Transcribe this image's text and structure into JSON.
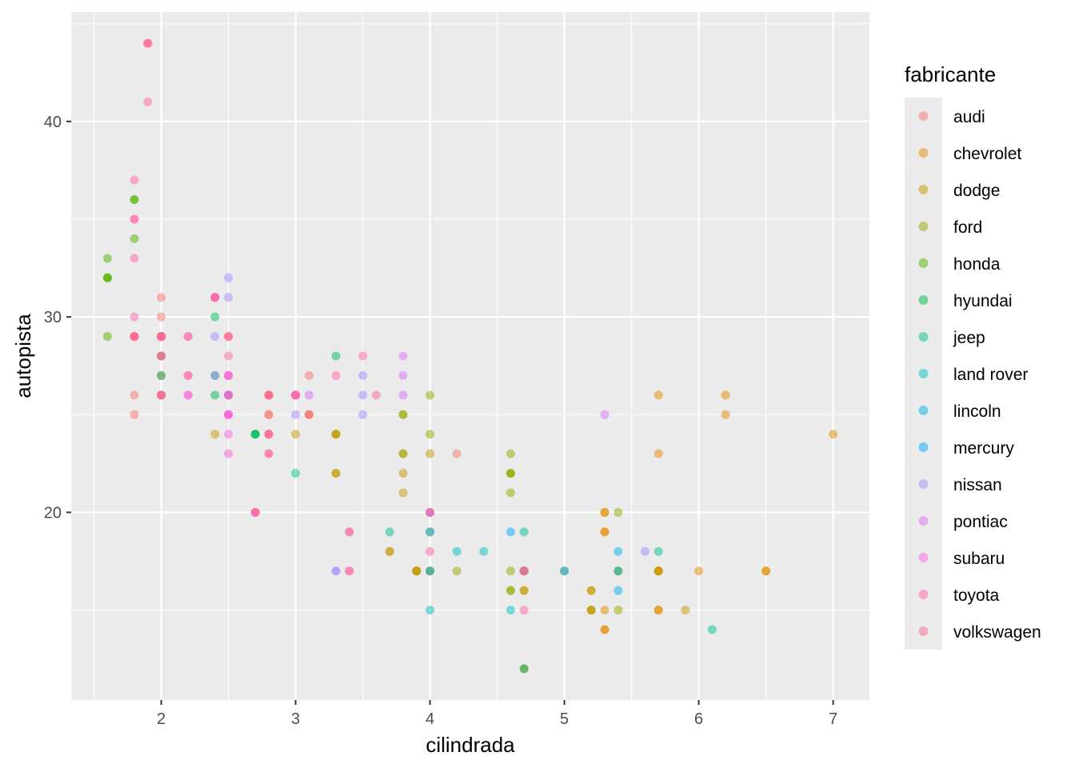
{
  "chart_data": {
    "type": "scatter",
    "xlabel": "cilindrada",
    "ylabel": "autopista",
    "xlim": [
      1.33,
      7.27
    ],
    "ylim": [
      10.4,
      45.6
    ],
    "x_ticks": [
      2,
      3,
      4,
      5,
      6,
      7
    ],
    "y_ticks": [
      20,
      30,
      40
    ],
    "grid": true,
    "legend": {
      "title": "fabricante",
      "placement": "right",
      "entries": [
        "audi",
        "chevrolet",
        "dodge",
        "ford",
        "honda",
        "hyundai",
        "jeep",
        "land rover",
        "lincoln",
        "mercury",
        "nissan",
        "pontiac",
        "subaru",
        "toyota",
        "volkswagen"
      ]
    },
    "series": [
      {
        "name": "audi",
        "color": "#F8766D",
        "points": [
          [
            1.8,
            29
          ],
          [
            1.8,
            29
          ],
          [
            2.0,
            31
          ],
          [
            2.0,
            30
          ],
          [
            2.8,
            26
          ],
          [
            2.8,
            26
          ],
          [
            3.1,
            27
          ],
          [
            1.8,
            26
          ],
          [
            1.8,
            25
          ],
          [
            2.0,
            28
          ],
          [
            2.0,
            27
          ],
          [
            2.8,
            25
          ],
          [
            2.8,
            25
          ],
          [
            3.1,
            25
          ],
          [
            3.1,
            25
          ],
          [
            2.8,
            24
          ],
          [
            3.1,
            25
          ],
          [
            4.2,
            23
          ]
        ]
      },
      {
        "name": "chevrolet",
        "color": "#E38900",
        "points": [
          [
            5.3,
            20
          ],
          [
            5.3,
            15
          ],
          [
            5.3,
            20
          ],
          [
            5.7,
            17
          ],
          [
            6.0,
            17
          ],
          [
            5.7,
            26
          ],
          [
            5.7,
            23
          ],
          [
            6.2,
            26
          ],
          [
            6.2,
            25
          ],
          [
            7.0,
            24
          ],
          [
            5.3,
            19
          ],
          [
            5.3,
            14
          ],
          [
            5.7,
            15
          ],
          [
            6.5,
            17
          ],
          [
            5.7,
            17
          ],
          [
            5.3,
            19
          ],
          [
            5.3,
            14
          ],
          [
            5.7,
            15
          ],
          [
            6.5,
            17
          ]
        ]
      },
      {
        "name": "dodge",
        "color": "#C49A00",
        "points": [
          [
            2.4,
            24
          ],
          [
            3.0,
            24
          ],
          [
            3.3,
            22
          ],
          [
            3.3,
            22
          ],
          [
            3.3,
            24
          ],
          [
            3.3,
            24
          ],
          [
            3.3,
            24
          ],
          [
            3.8,
            22
          ],
          [
            3.8,
            21
          ],
          [
            3.8,
            23
          ],
          [
            4.0,
            23
          ],
          [
            3.7,
            18
          ],
          [
            3.7,
            18
          ],
          [
            3.9,
            17
          ],
          [
            3.9,
            17
          ],
          [
            4.7,
            17
          ],
          [
            4.7,
            16
          ],
          [
            4.7,
            12
          ],
          [
            5.2,
            15
          ],
          [
            5.2,
            16
          ],
          [
            5.7,
            17
          ],
          [
            5.9,
            15
          ],
          [
            4.7,
            17
          ],
          [
            4.7,
            17
          ],
          [
            4.7,
            12
          ],
          [
            5.2,
            16
          ],
          [
            5.2,
            15
          ],
          [
            3.9,
            17
          ],
          [
            3.9,
            17
          ],
          [
            4.7,
            17
          ],
          [
            4.7,
            16
          ],
          [
            5.2,
            15
          ],
          [
            5.7,
            17
          ]
        ]
      },
      {
        "name": "ford",
        "color": "#99A800",
        "points": [
          [
            4.0,
            17
          ],
          [
            4.0,
            19
          ],
          [
            4.6,
            17
          ],
          [
            5.4,
            17
          ],
          [
            3.8,
            25
          ],
          [
            3.8,
            25
          ],
          [
            4.0,
            24
          ],
          [
            4.0,
            26
          ],
          [
            4.0,
            17
          ],
          [
            4.2,
            17
          ],
          [
            4.6,
            16
          ],
          [
            4.6,
            16
          ],
          [
            4.6,
            22
          ],
          [
            4.6,
            23
          ],
          [
            5.4,
            17
          ],
          [
            5.4,
            20
          ],
          [
            5.4,
            15
          ],
          [
            4.6,
            22
          ],
          [
            4.6,
            21
          ],
          [
            4.6,
            22
          ],
          [
            5.0,
            17
          ],
          [
            3.8,
            23
          ]
        ]
      },
      {
        "name": "honda",
        "color": "#53B400",
        "points": [
          [
            1.6,
            33
          ],
          [
            1.6,
            32
          ],
          [
            1.6,
            32
          ],
          [
            1.6,
            29
          ],
          [
            1.6,
            32
          ],
          [
            1.8,
            34
          ],
          [
            1.8,
            36
          ],
          [
            1.8,
            36
          ],
          [
            2.0,
            29
          ]
        ]
      },
      {
        "name": "hyundai",
        "color": "#00BC56",
        "points": [
          [
            2.4,
            26
          ],
          [
            2.4,
            27
          ],
          [
            2.4,
            30
          ],
          [
            2.4,
            31
          ],
          [
            2.5,
            26
          ],
          [
            2.5,
            26
          ],
          [
            3.3,
            28
          ],
          [
            2.0,
            26
          ],
          [
            2.0,
            29
          ],
          [
            2.0,
            28
          ],
          [
            2.0,
            27
          ],
          [
            2.7,
            24
          ],
          [
            2.7,
            24
          ],
          [
            2.7,
            24
          ]
        ]
      },
      {
        "name": "jeep",
        "color": "#00C094",
        "points": [
          [
            3.0,
            22
          ],
          [
            3.7,
            19
          ],
          [
            4.0,
            20
          ],
          [
            4.7,
            17
          ],
          [
            4.7,
            12
          ],
          [
            4.7,
            19
          ],
          [
            5.7,
            18
          ],
          [
            6.1,
            14
          ]
        ]
      },
      {
        "name": "land rover",
        "color": "#00BFC4",
        "points": [
          [
            4.0,
            15
          ],
          [
            4.2,
            18
          ],
          [
            4.4,
            18
          ],
          [
            4.6,
            15
          ]
        ]
      },
      {
        "name": "lincoln",
        "color": "#00B6EB",
        "points": [
          [
            5.4,
            17
          ],
          [
            5.4,
            16
          ],
          [
            5.4,
            18
          ]
        ]
      },
      {
        "name": "mercury",
        "color": "#06A4FF",
        "points": [
          [
            4.0,
            19
          ],
          [
            4.0,
            17
          ],
          [
            4.6,
            19
          ],
          [
            5.0,
            17
          ]
        ]
      },
      {
        "name": "nissan",
        "color": "#A58AFF",
        "points": [
          [
            2.4,
            27
          ],
          [
            2.4,
            29
          ],
          [
            2.5,
            31
          ],
          [
            2.5,
            32
          ],
          [
            3.5,
            27
          ],
          [
            3.5,
            26
          ],
          [
            3.0,
            26
          ],
          [
            3.0,
            25
          ],
          [
            3.5,
            25
          ],
          [
            3.3,
            17
          ],
          [
            3.3,
            17
          ],
          [
            4.0,
            20
          ],
          [
            5.6,
            18
          ]
        ]
      },
      {
        "name": "pontiac",
        "color": "#DF70F8",
        "points": [
          [
            3.1,
            26
          ],
          [
            3.8,
            26
          ],
          [
            3.8,
            27
          ],
          [
            3.8,
            28
          ],
          [
            5.3,
            25
          ]
        ]
      },
      {
        "name": "subaru",
        "color": "#FB61D7",
        "points": [
          [
            2.5,
            25
          ],
          [
            2.5,
            24
          ],
          [
            2.5,
            27
          ],
          [
            2.5,
            25
          ],
          [
            2.5,
            26
          ],
          [
            2.5,
            23
          ],
          [
            2.2,
            26
          ],
          [
            2.2,
            26
          ],
          [
            2.5,
            26
          ],
          [
            2.5,
            26
          ],
          [
            2.5,
            25
          ],
          [
            2.5,
            27
          ],
          [
            2.5,
            25
          ],
          [
            2.5,
            27
          ]
        ]
      },
      {
        "name": "toyota",
        "color": "#FF66A8",
        "points": [
          [
            2.7,
            20
          ],
          [
            2.7,
            20
          ],
          [
            3.4,
            19
          ],
          [
            3.4,
            17
          ],
          [
            4.0,
            20
          ],
          [
            4.7,
            17
          ],
          [
            2.2,
            29
          ],
          [
            2.2,
            27
          ],
          [
            2.4,
            31
          ],
          [
            2.4,
            31
          ],
          [
            3.0,
            26
          ],
          [
            3.0,
            26
          ],
          [
            3.5,
            28
          ],
          [
            2.2,
            27
          ],
          [
            2.2,
            29
          ],
          [
            2.4,
            31
          ],
          [
            2.4,
            31
          ],
          [
            3.0,
            26
          ],
          [
            3.0,
            26
          ],
          [
            3.3,
            27
          ],
          [
            1.8,
            35
          ],
          [
            1.8,
            37
          ],
          [
            1.8,
            35
          ],
          [
            2.7,
            20
          ],
          [
            2.7,
            20
          ],
          [
            3.4,
            19
          ],
          [
            3.4,
            17
          ],
          [
            4.0,
            20
          ],
          [
            4.0,
            18
          ],
          [
            4.7,
            17
          ],
          [
            4.7,
            15
          ],
          [
            1.8,
            30
          ],
          [
            1.8,
            33
          ]
        ]
      },
      {
        "name": "volkswagen",
        "color": "#FF6C91",
        "points": [
          [
            2.0,
            29
          ],
          [
            2.0,
            26
          ],
          [
            2.0,
            29
          ],
          [
            2.0,
            29
          ],
          [
            2.8,
            24
          ],
          [
            1.9,
            44
          ],
          [
            2.0,
            29
          ],
          [
            2.0,
            26
          ],
          [
            2.0,
            29
          ],
          [
            2.0,
            29
          ],
          [
            2.5,
            29
          ],
          [
            2.5,
            29
          ],
          [
            2.8,
            23
          ],
          [
            2.8,
            24
          ],
          [
            1.9,
            44
          ],
          [
            1.9,
            41
          ],
          [
            2.0,
            29
          ],
          [
            2.0,
            26
          ],
          [
            2.8,
            26
          ],
          [
            1.8,
            29
          ],
          [
            1.8,
            29
          ],
          [
            2.0,
            28
          ],
          [
            2.0,
            29
          ],
          [
            2.8,
            26
          ],
          [
            2.8,
            26
          ],
          [
            3.6,
            26
          ],
          [
            1.9,
            44
          ],
          [
            2.0,
            29
          ],
          [
            2.0,
            26
          ],
          [
            2.0,
            29
          ],
          [
            2.0,
            29
          ],
          [
            2.5,
            28
          ],
          [
            2.5,
            29
          ],
          [
            2.8,
            23
          ],
          [
            1.8,
            29
          ],
          [
            1.8,
            29
          ],
          [
            2.0,
            28
          ],
          [
            2.8,
            24
          ],
          [
            2.8,
            26
          ]
        ]
      }
    ]
  }
}
